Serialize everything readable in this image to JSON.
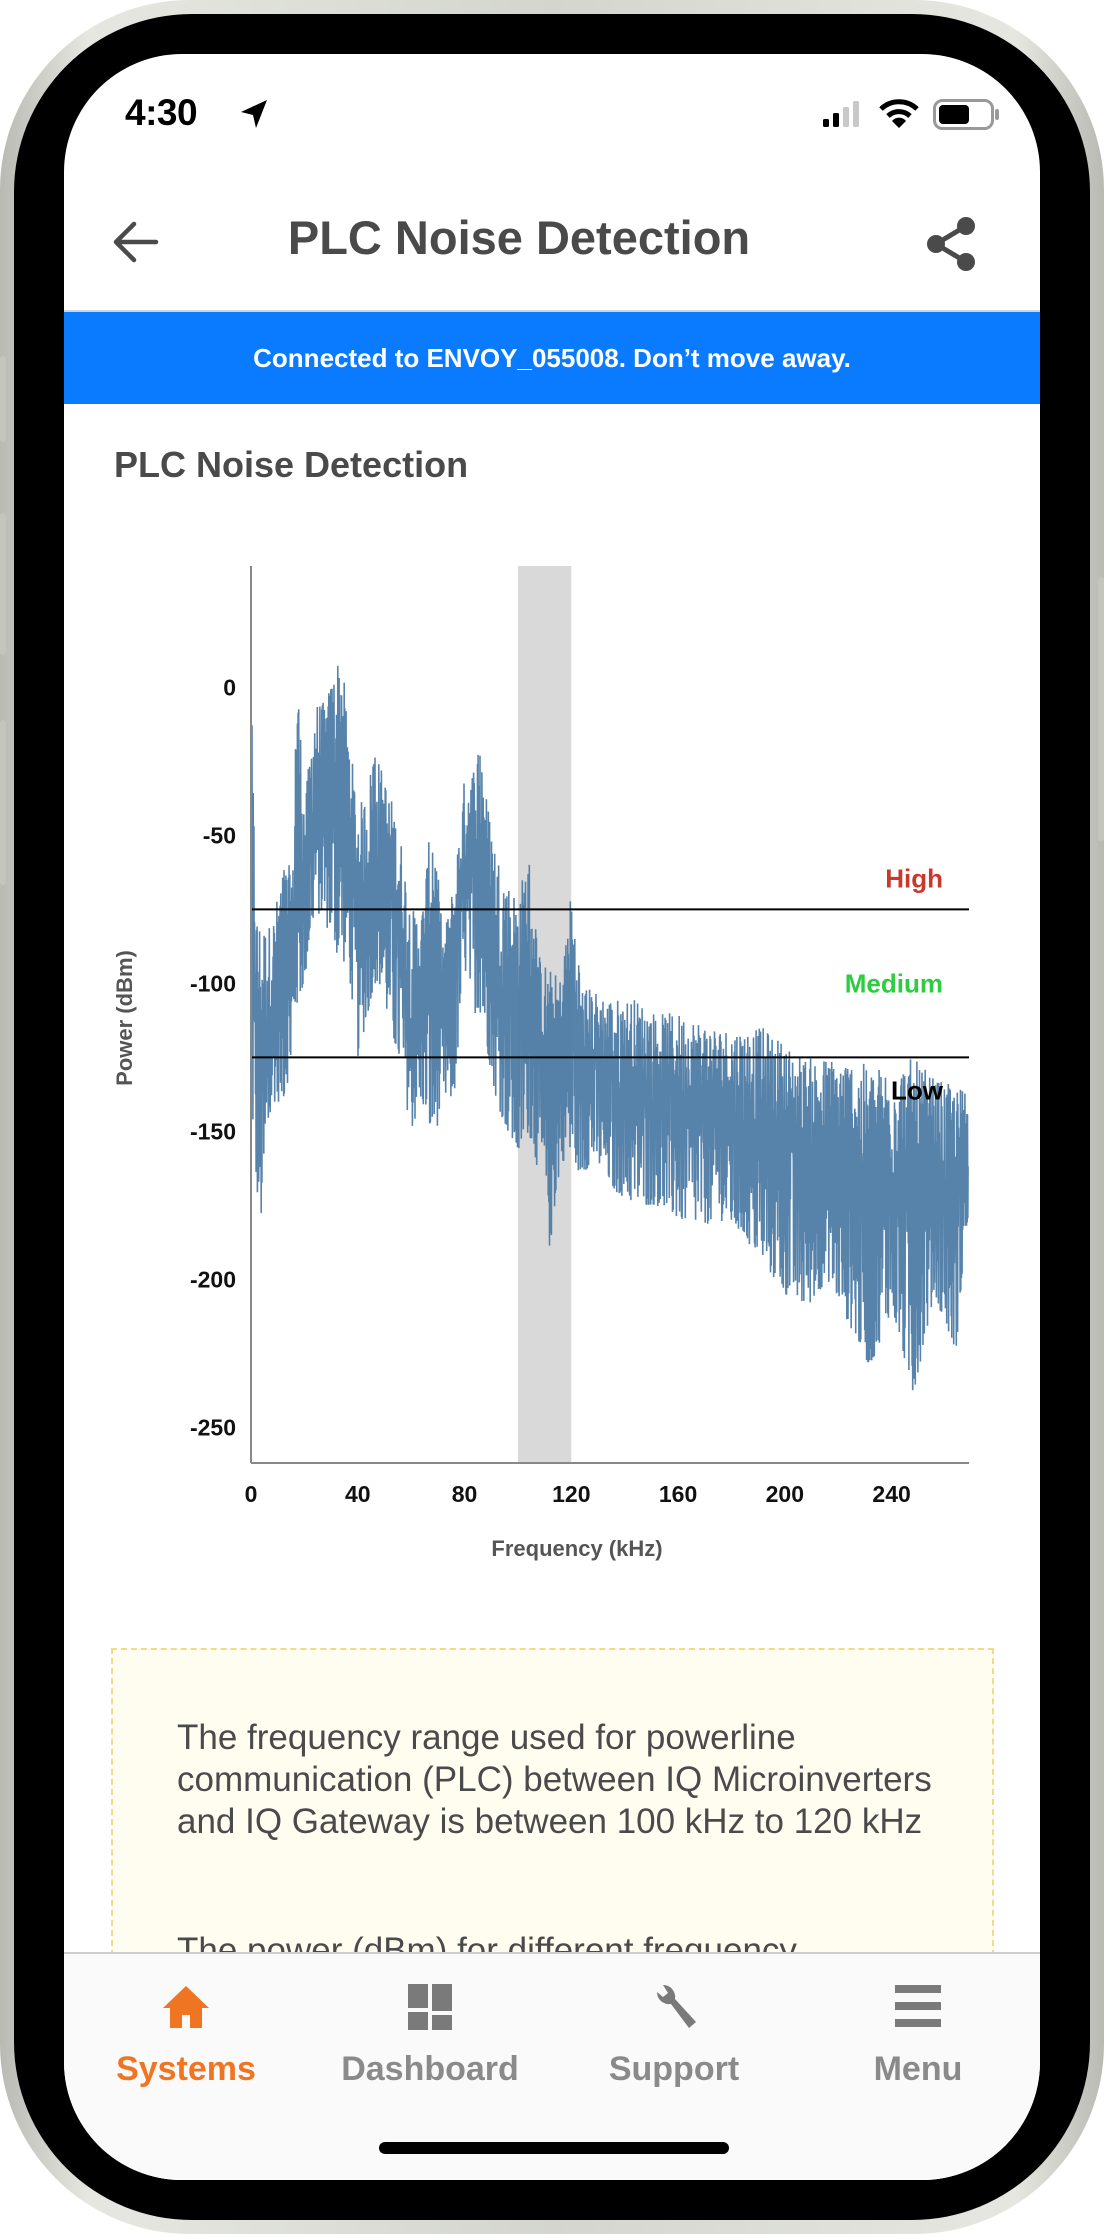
{
  "status_bar": {
    "time": "4:30"
  },
  "header": {
    "title": "PLC Noise Detection",
    "back_icon": "arrow-left-icon",
    "share_icon": "share-icon"
  },
  "banner": {
    "text": "Connected to ENVOY_055008. Don’t move away.",
    "color": "#0a7bff"
  },
  "section": {
    "title": "PLC Noise Detection"
  },
  "chart_data": {
    "type": "line",
    "xlabel": "Frequency (kHz)",
    "ylabel": "Power (dBm)",
    "xlim": [
      0,
      269
    ],
    "ylim": [
      -262,
      41
    ],
    "xticks": [
      "0",
      "40",
      "80",
      "120",
      "160",
      "200",
      "240"
    ],
    "yticks": [
      "0",
      "-50",
      "-100",
      "-150",
      "-200",
      "-250"
    ],
    "grid": false,
    "series_color": "#4e7ca6",
    "highlight_band": {
      "from": 100,
      "to": 120,
      "color": "#d9d9d9"
    },
    "thresholds": [
      {
        "value": -75,
        "label": "High",
        "color": "#c8392b"
      },
      {
        "value": -125,
        "label": "Low",
        "color": "#000000"
      }
    ],
    "band_label_medium": {
      "label": "Medium",
      "color": "#2ecc40"
    },
    "series": [
      {
        "x": [
          0,
          2,
          4,
          8,
          12,
          16,
          17,
          20,
          24,
          28,
          32,
          34,
          36,
          40,
          44,
          46,
          48,
          52,
          56,
          60,
          64,
          68,
          72,
          76,
          80,
          84,
          86,
          88,
          92,
          96,
          100,
          104,
          108,
          112,
          116,
          120,
          124,
          128,
          136,
          144,
          152,
          160,
          168,
          176,
          184,
          192,
          200,
          208,
          216,
          224,
          232,
          240,
          248,
          256,
          264,
          268
        ],
        "y_max": [
          1,
          -75,
          -80,
          -80,
          -60,
          -60,
          15,
          -40,
          -5,
          -5,
          10,
          12,
          -10,
          -40,
          -35,
          -15,
          -25,
          -35,
          -50,
          -75,
          -75,
          -40,
          -85,
          -65,
          -30,
          -25,
          -12,
          -35,
          -55,
          -65,
          -70,
          -55,
          -90,
          -95,
          -98,
          -68,
          -100,
          -102,
          -105,
          -105,
          -110,
          -110,
          -112,
          -115,
          -115,
          -115,
          -120,
          -125,
          -125,
          -125,
          -128,
          -128,
          -125,
          -132,
          -135,
          -135
        ],
        "y_min": [
          -140,
          -170,
          -182,
          -140,
          -140,
          -125,
          -110,
          -100,
          -75,
          -80,
          -90,
          -95,
          -90,
          -125,
          -110,
          -100,
          -100,
          -115,
          -130,
          -150,
          -140,
          -155,
          -140,
          -140,
          -95,
          -110,
          -110,
          -120,
          -140,
          -150,
          -160,
          -150,
          -165,
          -190,
          -160,
          -160,
          -165,
          -160,
          -170,
          -175,
          -175,
          -180,
          -182,
          -180,
          -185,
          -195,
          -205,
          -210,
          -200,
          -215,
          -230,
          -210,
          -240,
          -205,
          -225,
          -185
        ]
      }
    ]
  },
  "info": {
    "paragraph1": "The frequency range used for powerline communication (PLC) between IQ Microinverters and IQ Gateway is between 100 kHz to 120 kHz",
    "paragraph2": "The power (dBm) for different frequency"
  },
  "tabbar": {
    "active_color": "#f07522",
    "inactive_color": "#8a8a8a",
    "items": [
      {
        "label": "Systems",
        "icon": "home-icon",
        "active": true
      },
      {
        "label": "Dashboard",
        "icon": "dashboard-icon",
        "active": false
      },
      {
        "label": "Support",
        "icon": "wrench-icon",
        "active": false
      },
      {
        "label": "Menu",
        "icon": "menu-icon",
        "active": false
      }
    ]
  }
}
